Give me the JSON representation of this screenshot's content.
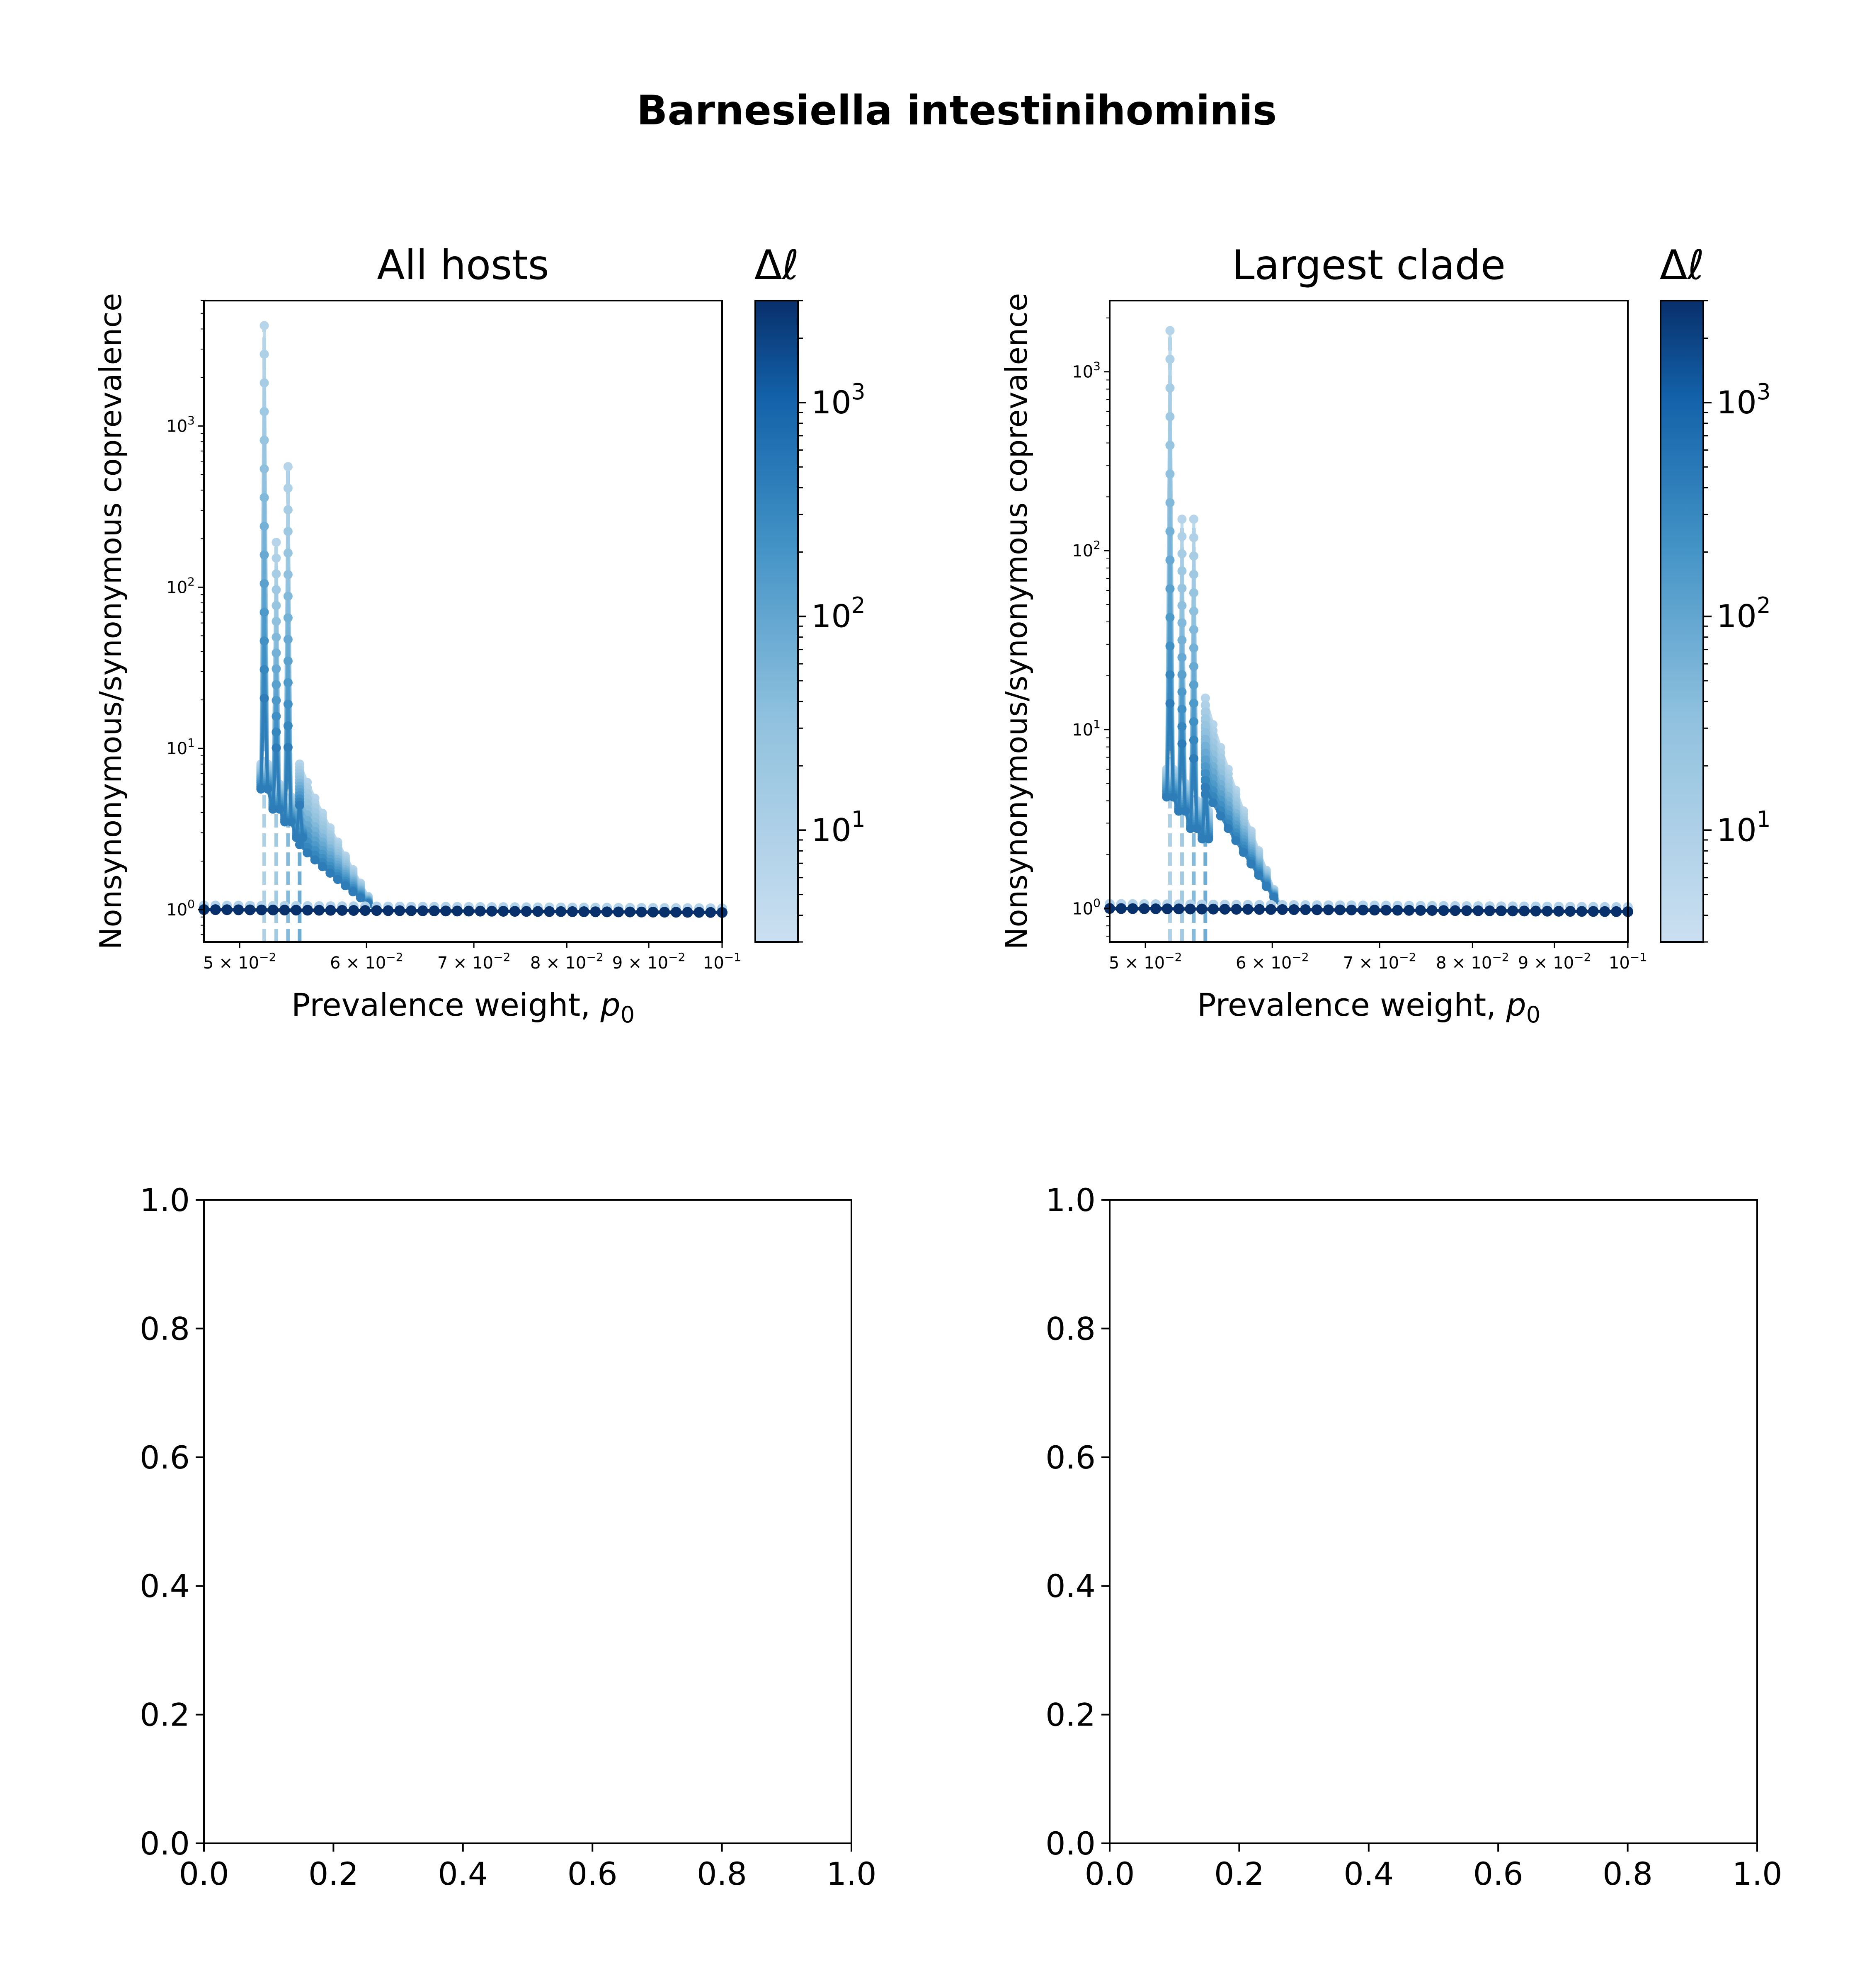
{
  "figure": {
    "suptitle": "Barnesiella intestinihominis"
  },
  "colorbar": {
    "label": "Δℓ",
    "tick_labels": [
      "10",
      "10",
      "10"
    ],
    "tick_exponents": [
      "1",
      "2",
      "3"
    ],
    "range": [
      3,
      3000
    ],
    "scale": "log",
    "colormap": "Blues",
    "color_light": "#cbdff1",
    "color_dark": "#08306b"
  },
  "chart_data": [
    {
      "type": "line",
      "title": "All hosts",
      "xlabel": "Prevalence weight, ",
      "xlabel_symbol": "p",
      "xlabel_subscript": "0",
      "ylabel": "Nonsynonymous/synonymous coprevalence",
      "xscale": "log",
      "yscale": "log",
      "xlim": [
        0.0475,
        0.1
      ],
      "ylim": [
        0.63,
        6000
      ],
      "x_ticks": [
        {
          "value": 0.05,
          "mantissa": "5 × 10",
          "exp": "−2"
        },
        {
          "value": 0.06,
          "mantissa": "6 × 10",
          "exp": "−2"
        },
        {
          "value": 0.07,
          "mantissa": "7 × 10",
          "exp": "−2"
        },
        {
          "value": 0.08,
          "mantissa": "8 × 10",
          "exp": "−2"
        },
        {
          "value": 0.09,
          "mantissa": "9 × 10",
          "exp": "−2"
        },
        {
          "value": 0.1,
          "mantissa": "10",
          "exp": "−1"
        }
      ],
      "y_ticks": [
        {
          "value": 1,
          "base": "10",
          "exp": "0"
        },
        {
          "value": 10,
          "base": "10",
          "exp": "1"
        },
        {
          "value": 100,
          "base": "10",
          "exp": "2"
        },
        {
          "value": 1000,
          "base": "10",
          "exp": "3"
        }
      ],
      "baseline": {
        "value": 1.0,
        "x_range": [
          0.0475,
          0.1
        ]
      },
      "spikes": [
        {
          "x": 0.0518,
          "peak": 4200,
          "base": 8
        },
        {
          "x": 0.0527,
          "peak": 190,
          "base": 6
        },
        {
          "x": 0.0536,
          "peak": 560,
          "base": 5
        },
        {
          "x": 0.0545,
          "peak": 8,
          "base": 4
        }
      ],
      "decay_tail": {
        "x_start": 0.0545,
        "x_end": 0.0608,
        "y_start": 8,
        "y_end": 1.0
      }
    },
    {
      "type": "line",
      "title": "Largest clade",
      "xlabel": "Prevalence weight, ",
      "xlabel_symbol": "p",
      "xlabel_subscript": "0",
      "ylabel": "Nonsynonymous/synonymous coprevalence",
      "xscale": "log",
      "yscale": "log",
      "xlim": [
        0.0475,
        0.1
      ],
      "ylim": [
        0.65,
        2500
      ],
      "x_ticks": [
        {
          "value": 0.05,
          "mantissa": "5 × 10",
          "exp": "−2"
        },
        {
          "value": 0.06,
          "mantissa": "6 × 10",
          "exp": "−2"
        },
        {
          "value": 0.07,
          "mantissa": "7 × 10",
          "exp": "−2"
        },
        {
          "value": 0.08,
          "mantissa": "8 × 10",
          "exp": "−2"
        },
        {
          "value": 0.09,
          "mantissa": "9 × 10",
          "exp": "−2"
        },
        {
          "value": 0.1,
          "mantissa": "10",
          "exp": "−1"
        }
      ],
      "y_ticks": [
        {
          "value": 1,
          "base": "10",
          "exp": "0"
        },
        {
          "value": 10,
          "base": "10",
          "exp": "1"
        },
        {
          "value": 100,
          "base": "10",
          "exp": "2"
        },
        {
          "value": 1000,
          "base": "10",
          "exp": "3"
        }
      ],
      "baseline": {
        "value": 1.0,
        "x_range": [
          0.0475,
          0.1
        ]
      },
      "spikes": [
        {
          "x": 0.0518,
          "peak": 1700,
          "base": 6
        },
        {
          "x": 0.0527,
          "peak": 150,
          "base": 5
        },
        {
          "x": 0.0536,
          "peak": 150,
          "base": 4
        },
        {
          "x": 0.0545,
          "peak": 15,
          "base": 3.5
        }
      ],
      "decay_tail": {
        "x_start": 0.0545,
        "x_end": 0.0608,
        "y_start": 15,
        "y_end": 1.0
      }
    },
    {
      "type": "empty",
      "xlim": [
        0,
        1
      ],
      "ylim": [
        0,
        1
      ],
      "x_ticks": [
        "0.0",
        "0.2",
        "0.4",
        "0.6",
        "0.8",
        "1.0"
      ],
      "y_ticks": [
        "0.0",
        "0.2",
        "0.4",
        "0.6",
        "0.8",
        "1.0"
      ]
    },
    {
      "type": "empty",
      "xlim": [
        0,
        1
      ],
      "ylim": [
        0,
        1
      ],
      "x_ticks": [
        "0.0",
        "0.2",
        "0.4",
        "0.6",
        "0.8",
        "1.0"
      ],
      "y_ticks": [
        "0.0",
        "0.2",
        "0.4",
        "0.6",
        "0.8",
        "1.0"
      ]
    }
  ]
}
